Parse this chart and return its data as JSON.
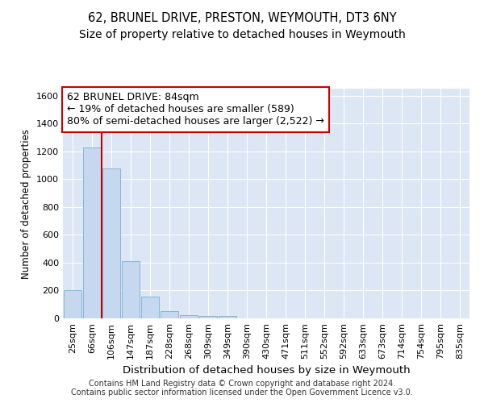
{
  "title1": "62, BRUNEL DRIVE, PRESTON, WEYMOUTH, DT3 6NY",
  "title2": "Size of property relative to detached houses in Weymouth",
  "xlabel": "Distribution of detached houses by size in Weymouth",
  "ylabel": "Number of detached properties",
  "categories": [
    "25sqm",
    "66sqm",
    "106sqm",
    "147sqm",
    "187sqm",
    "228sqm",
    "268sqm",
    "309sqm",
    "349sqm",
    "390sqm",
    "430sqm",
    "471sqm",
    "511sqm",
    "552sqm",
    "592sqm",
    "633sqm",
    "673sqm",
    "714sqm",
    "754sqm",
    "795sqm",
    "835sqm"
  ],
  "values": [
    205,
    1230,
    1075,
    410,
    158,
    50,
    22,
    16,
    20,
    0,
    0,
    0,
    0,
    0,
    0,
    0,
    0,
    0,
    0,
    0,
    0
  ],
  "bar_color": "#c5d8f0",
  "bar_edge_color": "#7bafd4",
  "red_line_x": 1.5,
  "ylim": [
    0,
    1650
  ],
  "yticks": [
    0,
    200,
    400,
    600,
    800,
    1000,
    1200,
    1400,
    1600
  ],
  "annotation_text": "62 BRUNEL DRIVE: 84sqm\n← 19% of detached houses are smaller (589)\n80% of semi-detached houses are larger (2,522) →",
  "annotation_box_facecolor": "#ffffff",
  "annotation_box_edgecolor": "#cc0000",
  "red_line_color": "#cc0000",
  "plot_bg_color": "#dce6f5",
  "grid_color": "#ffffff",
  "footer_text": "Contains HM Land Registry data © Crown copyright and database right 2024.\nContains public sector information licensed under the Open Government Licence v3.0.",
  "title1_fontsize": 10.5,
  "title2_fontsize": 10,
  "xlabel_fontsize": 9.5,
  "ylabel_fontsize": 8.5,
  "tick_fontsize": 8,
  "annotation_fontsize": 9,
  "footer_fontsize": 7
}
